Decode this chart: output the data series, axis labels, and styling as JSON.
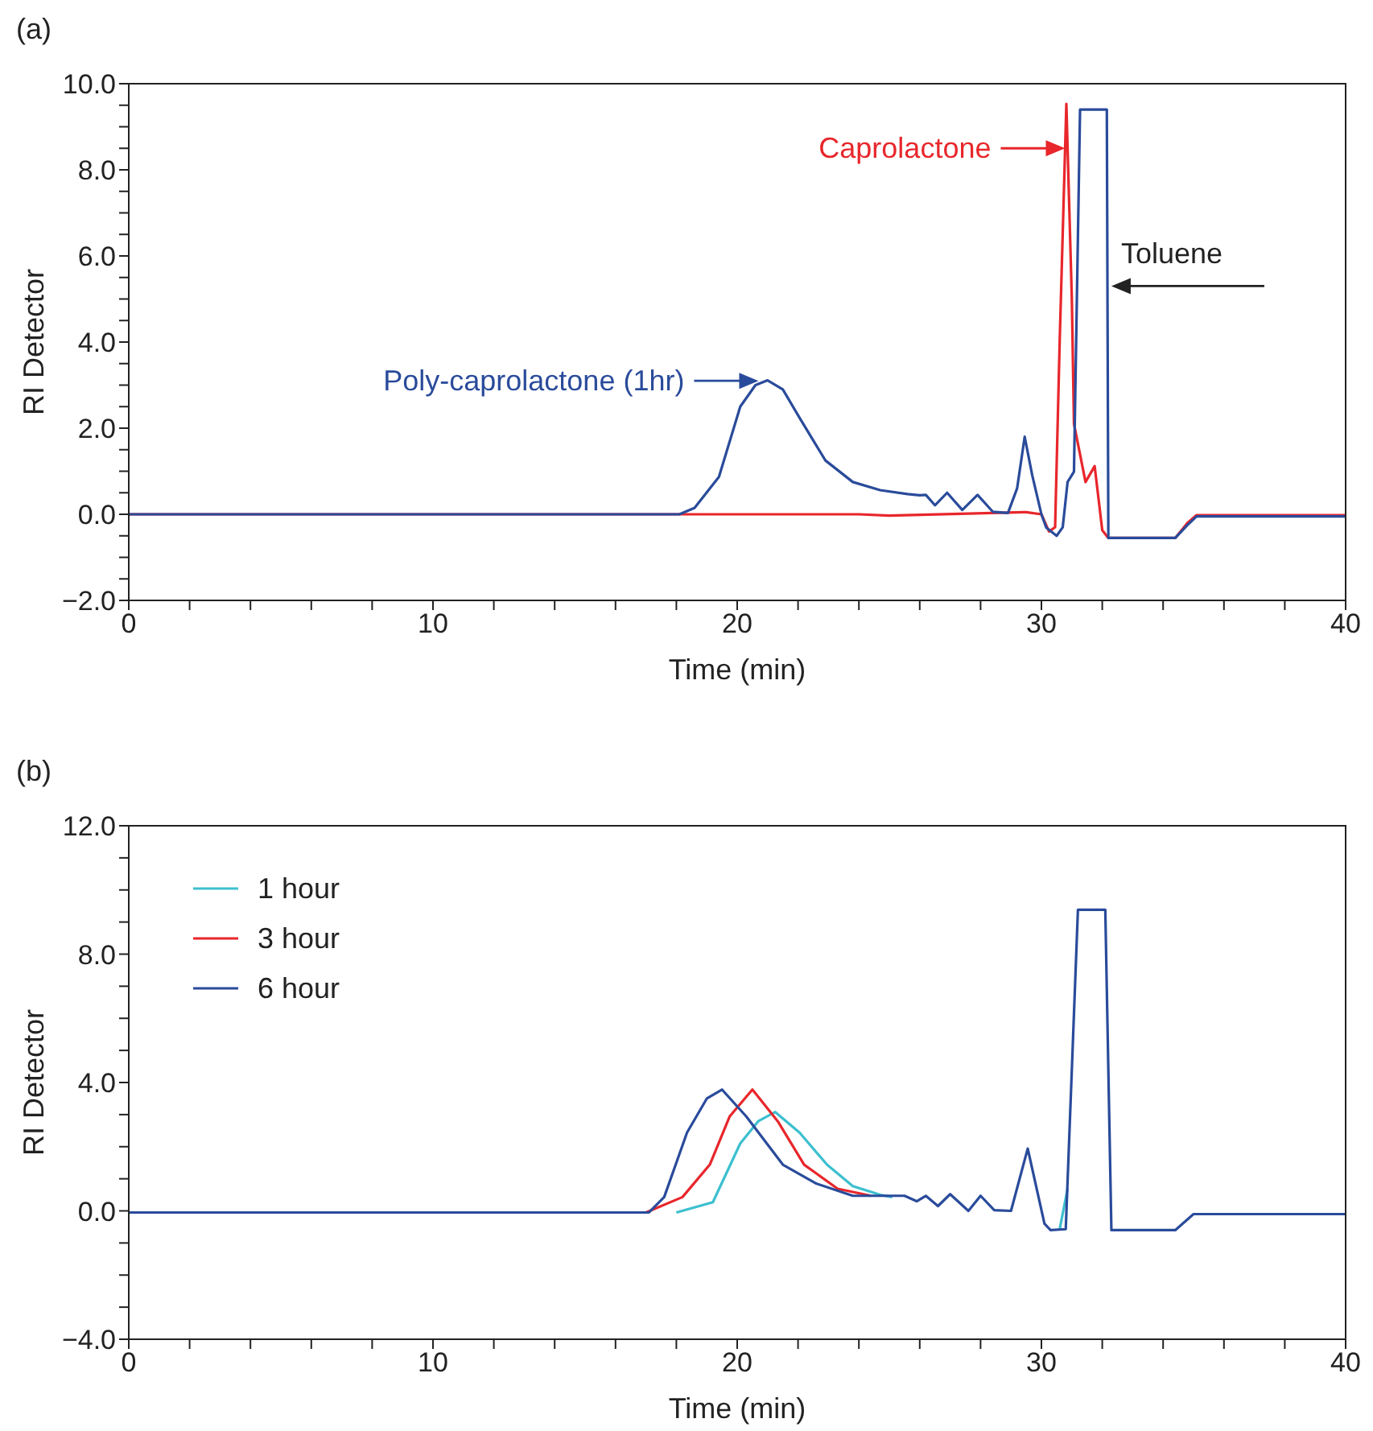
{
  "chart_data": [
    {
      "type": "line",
      "title": "(a)",
      "xlabel": "Time (min)",
      "ylabel": "RI Detector",
      "marker": "none",
      "line_style": "solid",
      "grid": false,
      "legend": false,
      "xlim": [
        0,
        40
      ],
      "xticks": [
        0,
        {
          "value": 2,
          "label": null
        },
        {
          "value": 4,
          "label": null
        },
        {
          "value": 6,
          "label": null
        },
        {
          "value": 8,
          "label": null
        },
        10,
        {
          "value": 12,
          "label": null
        },
        {
          "value": 14,
          "label": null
        },
        {
          "value": 16,
          "label": null
        },
        {
          "value": 18,
          "label": null
        },
        20,
        {
          "value": 22,
          "label": null
        },
        {
          "value": 24,
          "label": null
        },
        {
          "value": 26,
          "label": null
        },
        {
          "value": 28,
          "label": null
        },
        30,
        {
          "value": 32,
          "label": null
        },
        {
          "value": 34,
          "label": null
        },
        {
          "value": 36,
          "label": null
        },
        {
          "value": 38,
          "label": null
        },
        40
      ],
      "ylim": [
        -2,
        10
      ],
      "yticks": [
        {
          "value": -2,
          "label": "−2.0"
        },
        {
          "value": -1.5,
          "label": null
        },
        {
          "value": -1,
          "label": null
        },
        {
          "value": -0.5,
          "label": null
        },
        {
          "value": 0,
          "label": "0.0"
        },
        {
          "value": 0.5,
          "label": null
        },
        {
          "value": 1,
          "label": null
        },
        {
          "value": 1.5,
          "label": null
        },
        {
          "value": 2,
          "label": "2.0"
        },
        {
          "value": 2.5,
          "label": null
        },
        {
          "value": 3,
          "label": null
        },
        {
          "value": 3.5,
          "label": null
        },
        {
          "value": 4,
          "label": "4.0"
        },
        {
          "value": 4.5,
          "label": null
        },
        {
          "value": 5,
          "label": null
        },
        {
          "value": 5.5,
          "label": null
        },
        {
          "value": 6,
          "label": "6.0"
        },
        {
          "value": 6.5,
          "label": null
        },
        {
          "value": 7,
          "label": null
        },
        {
          "value": 7.5,
          "label": null
        },
        {
          "value": 8,
          "label": "8.0"
        },
        {
          "value": 8.5,
          "label": null
        },
        {
          "value": 9,
          "label": null
        },
        {
          "value": 9.5,
          "label": null
        },
        {
          "value": 10,
          "label": "10.0"
        }
      ],
      "annotations": [
        {
          "text": "Poly-caprolactone (1hr)",
          "x": 20.7,
          "y": 3.1
        },
        {
          "text": "Caprolactone",
          "x": 30.78,
          "y": 8.5
        },
        {
          "text": "Toluene",
          "x": 32.3,
          "y": 5.3
        }
      ],
      "series": [
        {
          "color": "#e8262b",
          "x": [
            0,
            24,
            25,
            29.5,
            30,
            30.25,
            30.45,
            30.6,
            30.82,
            31,
            31.07,
            31.45,
            31.75,
            32,
            32.2,
            34.4,
            34.8,
            35.1,
            40
          ],
          "values": [
            0,
            0,
            -0.03,
            0.05,
            0,
            -0.4,
            -0.3,
            4,
            9.53,
            5,
            2.1,
            0.75,
            1.12,
            -0.37,
            -0.55,
            -0.55,
            -0.2,
            -0.02,
            -0.02
          ]
        },
        {
          "color": "#2a4b9b",
          "x": [
            0,
            18.1,
            18.6,
            19.4,
            20.1,
            20.6,
            21,
            21.5,
            22.05,
            22.9,
            23.8,
            24.7,
            25.6,
            26,
            26.2,
            26.5,
            26.9,
            27.4,
            27.9,
            28.4,
            28.9,
            29.2,
            29.45,
            29.7,
            30,
            30.16,
            30.5,
            30.7,
            30.86,
            31.07,
            31.27,
            32.15,
            32.2,
            34.4,
            34.8,
            35.1,
            40
          ],
          "values": [
            0,
            0,
            0.15,
            0.87,
            2.5,
            3,
            3.11,
            2.9,
            2.24,
            1.25,
            0.75,
            0.56,
            0.47,
            0.44,
            0.45,
            0.21,
            0.5,
            0.1,
            0.45,
            0.06,
            0.03,
            0.6,
            1.8,
            0.9,
            0,
            -0.31,
            -0.5,
            -0.3,
            0.75,
            0.99,
            9.4,
            9.4,
            -0.55,
            -0.55,
            -0.25,
            -0.05,
            -0.05
          ]
        }
      ]
    },
    {
      "type": "line",
      "title": "(b)",
      "xlabel": "Time (min)",
      "ylabel": "RI Detector",
      "marker": "none",
      "line_style": "solid",
      "grid": false,
      "legend": "top left",
      "xlim": [
        0,
        40
      ],
      "xticks": [
        0,
        {
          "value": 2,
          "label": null
        },
        {
          "value": 4,
          "label": null
        },
        {
          "value": 6,
          "label": null
        },
        {
          "value": 8,
          "label": null
        },
        10,
        {
          "value": 12,
          "label": null
        },
        {
          "value": 14,
          "label": null
        },
        {
          "value": 16,
          "label": null
        },
        {
          "value": 18,
          "label": null
        },
        20,
        {
          "value": 22,
          "label": null
        },
        {
          "value": 24,
          "label": null
        },
        {
          "value": 26,
          "label": null
        },
        {
          "value": 28,
          "label": null
        },
        30,
        {
          "value": 32,
          "label": null
        },
        {
          "value": 34,
          "label": null
        },
        {
          "value": 36,
          "label": null
        },
        {
          "value": 38,
          "label": null
        },
        40
      ],
      "ylim": [
        -4,
        12
      ],
      "yticks": [
        {
          "value": -4,
          "label": "−4.0"
        },
        {
          "value": -3,
          "label": null
        },
        {
          "value": -2,
          "label": null
        },
        {
          "value": -1,
          "label": null
        },
        {
          "value": 0,
          "label": "0.0"
        },
        {
          "value": 1,
          "label": null
        },
        {
          "value": 2,
          "label": null
        },
        {
          "value": 3,
          "label": null
        },
        {
          "value": 4,
          "label": "4.0"
        },
        {
          "value": 5,
          "label": null
        },
        {
          "value": 6,
          "label": null
        },
        {
          "value": 7,
          "label": null
        },
        {
          "value": 8,
          "label": "8.0"
        },
        {
          "value": 9,
          "label": null
        },
        {
          "value": 10,
          "label": null
        },
        {
          "value": 11,
          "label": null
        },
        {
          "value": 12,
          "label": "12.0"
        }
      ],
      "series": [
        {
          "name": "1 hour",
          "color": "#3cbfcf",
          "x": [
            18,
            19.2,
            20.1,
            20.7,
            21.25,
            22.05,
            22.95,
            23.8,
            24.7,
            25.1,
            25.3,
            30.6,
            30.86
          ],
          "values": [
            -0.05,
            0.27,
            2.1,
            2.8,
            3.08,
            2.44,
            1.44,
            0.77,
            0.5,
            0.43,
            null,
            -0.57,
            0.69
          ]
        },
        {
          "name": "3 hour",
          "color": "#e8262b",
          "x": [
            17,
            18.2,
            19.1,
            19.75,
            20.5,
            21.35,
            22.2,
            23.3,
            24.4
          ],
          "values": [
            -0.05,
            0.43,
            1.44,
            2.94,
            3.78,
            2.77,
            1.44,
            0.69,
            0.47
          ]
        },
        {
          "name": "6 hour",
          "color": "#2a4b9b",
          "x": [
            0,
            17.1,
            17.6,
            18.35,
            19,
            19.5,
            20.3,
            21.5,
            22.6,
            23.8,
            25.5,
            25.9,
            26.2,
            26.6,
            27,
            27.6,
            28,
            28.45,
            29,
            29.55,
            30.1,
            30.3,
            30.8,
            31.2,
            32.1,
            32.3,
            34.4,
            35,
            40
          ],
          "values": [
            -0.05,
            -0.05,
            0.43,
            2.44,
            3.5,
            3.78,
            2.94,
            1.44,
            0.85,
            0.47,
            0.47,
            0.3,
            0.47,
            0.15,
            0.52,
            0,
            0.47,
            0.02,
            0,
            1.94,
            -0.4,
            -0.6,
            -0.57,
            9.38,
            9.38,
            -0.6,
            -0.6,
            -0.1,
            -0.1
          ]
        }
      ]
    }
  ]
}
